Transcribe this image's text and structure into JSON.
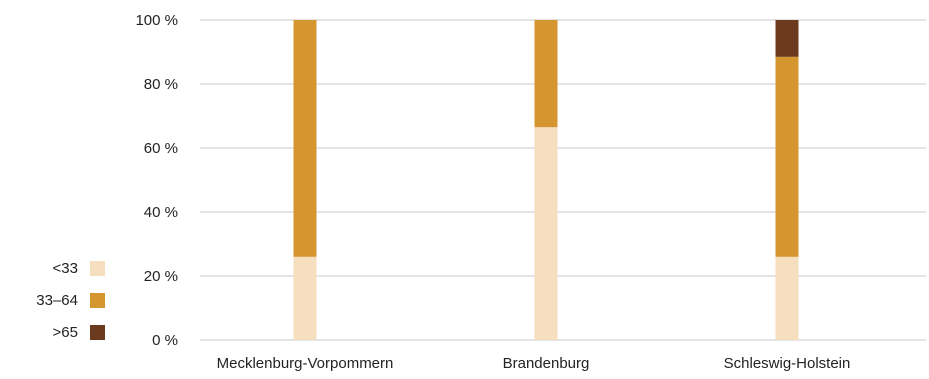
{
  "chart_data": {
    "type": "bar",
    "stacked": true,
    "percent": true,
    "categories": [
      "Mecklenburg-Vorpommern",
      "Brandenburg",
      "Schleswig-Holstein"
    ],
    "series": [
      {
        "name": "<33",
        "color": "#f5dfbf",
        "values": [
          26,
          66.5,
          26
        ]
      },
      {
        "name": "33–64",
        "color": "#d6962f",
        "values": [
          74,
          33.5,
          62.5
        ]
      },
      {
        "name": ">65",
        "color": "#6b3a1f",
        "values": [
          0,
          0,
          11.5
        ]
      }
    ],
    "ylim": [
      0,
      100
    ],
    "yticks": [
      "0 %",
      "20 %",
      "40 %",
      "60 %",
      "80 %",
      "100 %"
    ],
    "grid": true,
    "legend_position": "left"
  }
}
